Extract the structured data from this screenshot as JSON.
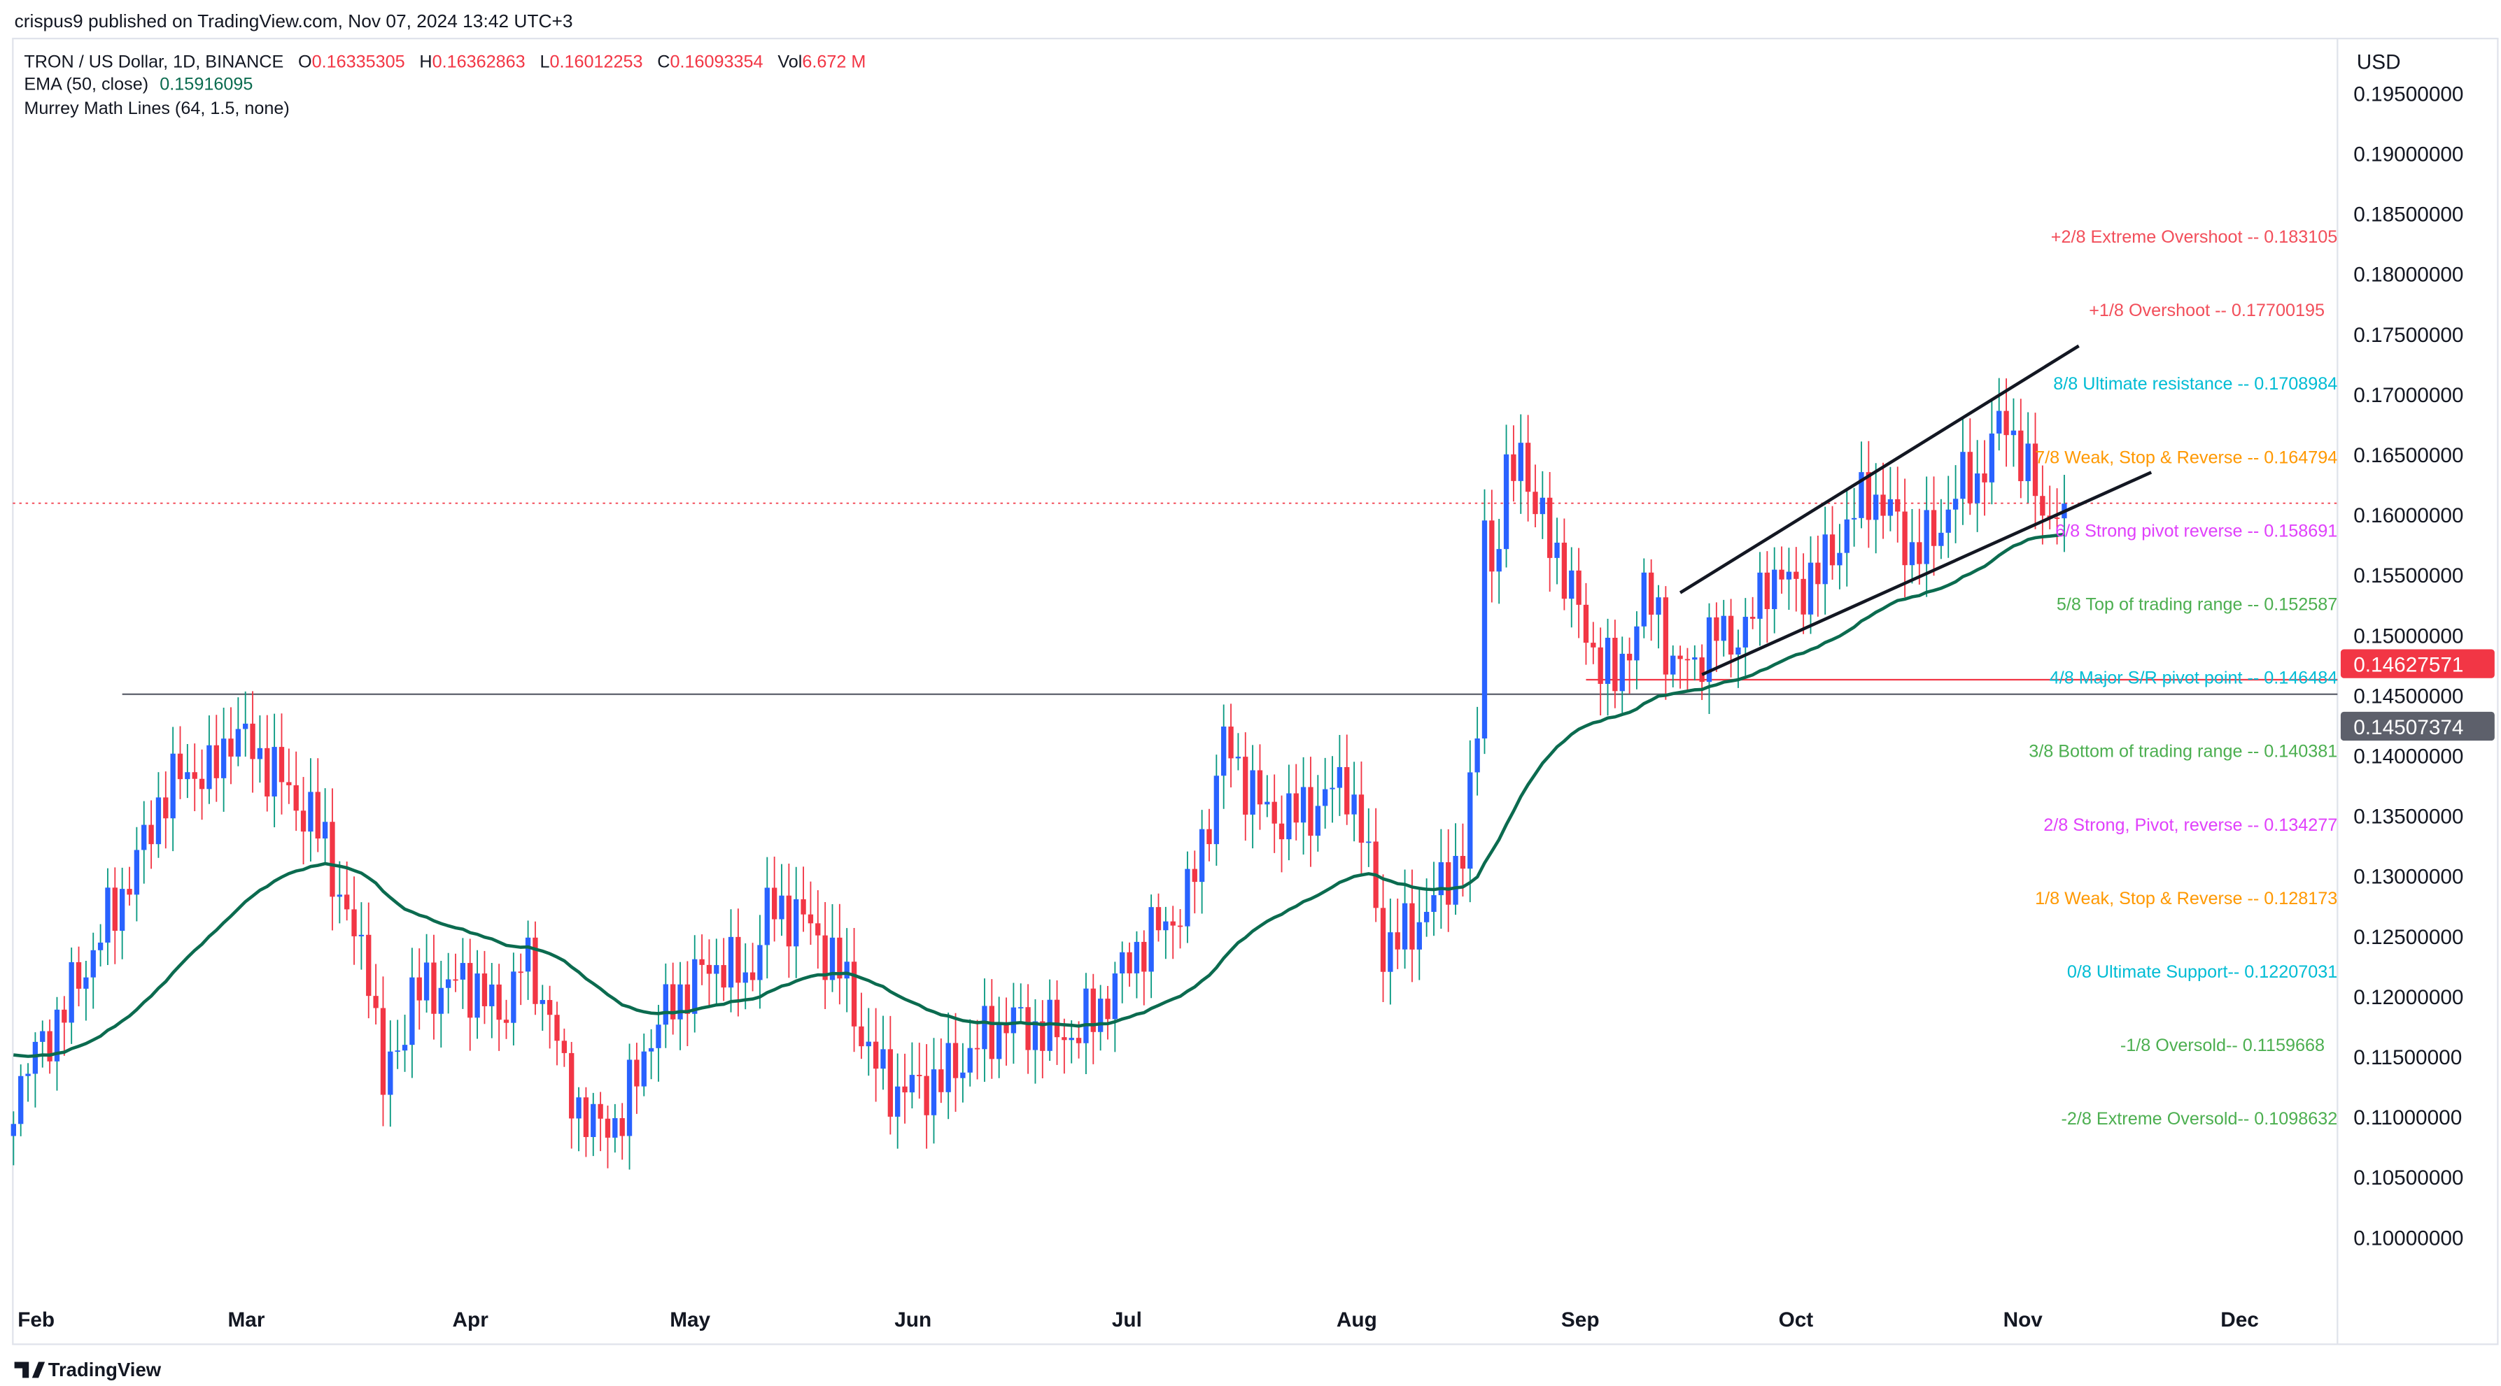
{
  "header": {
    "publish_line": "crispus9 published on TradingView.com, Nov 07, 2024 13:42 UTC+3",
    "symbol": "TRON / US Dollar, 1D, BINANCE",
    "o_label": "O",
    "o_value": "0.16335305",
    "h_label": "H",
    "h_value": "0.16362863",
    "l_label": "L",
    "l_value": "0.16012253",
    "c_label": "C",
    "c_value": "0.16093354",
    "vol_label": "Vol",
    "vol_value": "6.672 M",
    "ema_label": "EMA (50, close)",
    "ema_value": "0.15916095",
    "murrey_label": "Murrey Math Lines (64, 1.5, none)"
  },
  "footer": {
    "brand": "TradingView"
  },
  "colors": {
    "up_body": "#2962ff",
    "up_wick": "#089981",
    "down": "#f23645",
    "ema": "#0b6b4f",
    "text": "#131722"
  },
  "chart_data": {
    "type": "candlestick",
    "title": "TRON / US Dollar, 1D, BINANCE",
    "currency": "USD",
    "ylim": [
      0.1,
      0.195
    ],
    "y_ticks": [
      "0.19500000",
      "0.19000000",
      "0.18500000",
      "0.18000000",
      "0.17500000",
      "0.17000000",
      "0.16500000",
      "0.16000000",
      "0.15500000",
      "0.15000000",
      "0.14500000",
      "0.14000000",
      "0.13500000",
      "0.13000000",
      "0.12500000",
      "0.12000000",
      "0.11500000",
      "0.11000000",
      "0.10500000",
      "0.10000000"
    ],
    "x_ticks": [
      {
        "label": "Feb",
        "day": 0
      },
      {
        "label": "Mar",
        "day": 29
      },
      {
        "label": "Apr",
        "day": 60
      },
      {
        "label": "May",
        "day": 90
      },
      {
        "label": "Jun",
        "day": 121
      },
      {
        "label": "Jul",
        "day": 151
      },
      {
        "label": "Aug",
        "day": 182
      },
      {
        "label": "Sep",
        "day": 213
      },
      {
        "label": "Oct",
        "day": 243
      },
      {
        "label": "Nov",
        "day": 274
      },
      {
        "label": "Dec",
        "day": 304
      }
    ],
    "approx_close_keypoints": [
      [
        -3,
        0.112
      ],
      [
        4,
        0.119
      ],
      [
        9,
        0.125
      ],
      [
        14,
        0.131
      ],
      [
        17,
        0.136
      ],
      [
        21,
        0.139
      ],
      [
        24,
        0.138
      ],
      [
        27,
        0.142
      ],
      [
        31,
        0.14
      ],
      [
        35,
        0.137
      ],
      [
        40,
        0.133
      ],
      [
        43,
        0.126
      ],
      [
        46,
        0.123
      ],
      [
        48,
        0.112
      ],
      [
        52,
        0.12
      ],
      [
        56,
        0.121
      ],
      [
        61,
        0.121
      ],
      [
        64,
        0.118
      ],
      [
        67,
        0.123
      ],
      [
        71,
        0.119
      ],
      [
        73,
        0.113
      ],
      [
        77,
        0.109
      ],
      [
        81,
        0.11
      ],
      [
        85,
        0.117
      ],
      [
        90,
        0.121
      ],
      [
        95,
        0.123
      ],
      [
        98,
        0.121
      ],
      [
        101,
        0.127
      ],
      [
        105,
        0.127
      ],
      [
        109,
        0.124
      ],
      [
        112,
        0.121
      ],
      [
        115,
        0.115
      ],
      [
        119,
        0.112
      ],
      [
        125,
        0.113
      ],
      [
        130,
        0.116
      ],
      [
        134,
        0.118
      ],
      [
        140,
        0.117
      ],
      [
        144,
        0.117
      ],
      [
        148,
        0.12
      ],
      [
        152,
        0.124
      ],
      [
        156,
        0.126
      ],
      [
        159,
        0.128
      ],
      [
        162,
        0.135
      ],
      [
        164,
        0.141
      ],
      [
        167,
        0.138
      ],
      [
        170,
        0.135
      ],
      [
        174,
        0.135
      ],
      [
        177,
        0.136
      ],
      [
        181,
        0.138
      ],
      [
        184,
        0.131
      ],
      [
        186,
        0.124
      ],
      [
        189,
        0.125
      ],
      [
        193,
        0.128
      ],
      [
        197,
        0.132
      ],
      [
        199,
        0.141
      ],
      [
        200,
        0.161
      ],
      [
        201,
        0.155
      ],
      [
        203,
        0.162
      ],
      [
        205,
        0.166
      ],
      [
        207,
        0.16
      ],
      [
        210,
        0.157
      ],
      [
        214,
        0.15
      ],
      [
        218,
        0.146
      ],
      [
        222,
        0.153
      ],
      [
        224,
        0.152
      ],
      [
        226,
        0.147
      ],
      [
        229,
        0.148
      ],
      [
        232,
        0.15
      ],
      [
        236,
        0.15
      ],
      [
        239,
        0.155
      ],
      [
        243,
        0.154
      ],
      [
        246,
        0.155
      ],
      [
        250,
        0.159
      ],
      [
        253,
        0.162
      ],
      [
        256,
        0.16
      ],
      [
        259,
        0.157
      ],
      [
        262,
        0.158
      ],
      [
        265,
        0.162
      ],
      [
        268,
        0.163
      ],
      [
        271,
        0.167
      ],
      [
        272,
        0.168
      ],
      [
        274,
        0.165
      ],
      [
        277,
        0.16
      ],
      [
        279,
        0.161
      ],
      [
        280,
        0.1609
      ]
    ],
    "last_price": 0.16093354,
    "price_labels": [
      {
        "value": "0.14627571",
        "price": 0.14627571,
        "bg": "#f23645"
      },
      {
        "value": "0.14507374",
        "price": 0.14507374,
        "bg": "#5d606b"
      }
    ],
    "horizontal_lines": [
      {
        "price": 0.14507374,
        "from_day": 12,
        "color": "#5d606b"
      },
      {
        "price": 0.14627571,
        "from_day": 214,
        "color": "#f23645"
      }
    ],
    "trendlines": [
      {
        "from": [
          227,
          0.1535
        ],
        "to": [
          282,
          0.174
        ]
      },
      {
        "from": [
          230,
          0.1467
        ],
        "to": [
          292,
          0.1635
        ]
      }
    ],
    "murrey_levels": [
      {
        "text": "+2/8 Extreme Overshoot --  0.183105",
        "price": 0.183105,
        "color": "#f24e5a"
      },
      {
        "text": "+1/8 Overshoot --  0.17700195",
        "price": 0.17700195,
        "color": "#f24e5a",
        "inset": true
      },
      {
        "text": "8/8 Ultimate resistance --  0.1708984",
        "price": 0.1708984,
        "color": "#00bcd4"
      },
      {
        "text": "7/8 Weak, Stop & Reverse --  0.164794",
        "price": 0.164794,
        "color": "#ff9800"
      },
      {
        "text": "6/8 Strong pivot reverse --  0.158691",
        "price": 0.158691,
        "color": "#e040fb"
      },
      {
        "text": "5/8 Top of trading range --  0.152587",
        "price": 0.152587,
        "color": "#4caf50"
      },
      {
        "text": "4/8 Major S/R pivot point --  0.146484",
        "price": 0.146484,
        "color": "#00bcd4"
      },
      {
        "text": "3/8 Bottom of trading range --  0.140381",
        "price": 0.140381,
        "color": "#4caf50"
      },
      {
        "text": "2/8 Strong, Pivot, reverse --  0.134277",
        "price": 0.134277,
        "color": "#e040fb"
      },
      {
        "text": "1/8 Weak, Stop & Reverse --  0.128173",
        "price": 0.128173,
        "color": "#ff9800"
      },
      {
        "text": "0/8 Ultimate Support--  0.12207031",
        "price": 0.12207031,
        "color": "#00bcd4"
      },
      {
        "text": "-1/8 Oversold--  0.1159668",
        "price": 0.1159668,
        "color": "#4caf50",
        "inset": true
      },
      {
        "text": "-2/8 Extreme Oversold--  0.1098632",
        "price": 0.1098632,
        "color": "#4caf50"
      }
    ],
    "indicators": [
      {
        "name": "EMA",
        "period": 50,
        "source": "close"
      }
    ]
  }
}
